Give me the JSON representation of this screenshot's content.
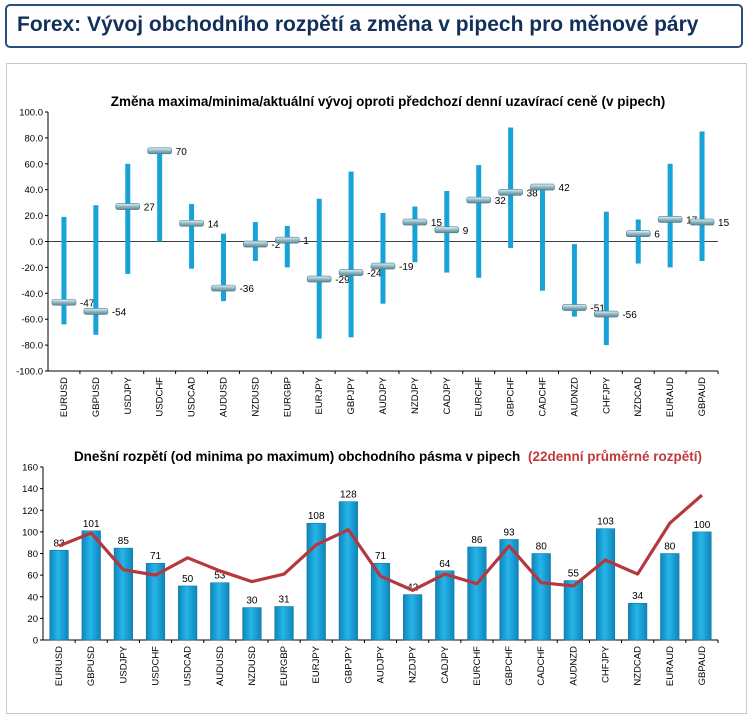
{
  "header": {
    "title": "Forex: Vývoj obchodního rozpětí a změna v pipech pro měnové páry"
  },
  "colors": {
    "bar": "#17a2d8",
    "bar_dark": "#0b7fb0",
    "avg_line": "#b5383f",
    "marker": "#8fb8c4",
    "title_border": "#2a4f7a"
  },
  "chart_data": [
    {
      "type": "range",
      "title": "Změna maxima/minima/aktuální vývoj oproti předchozí denní uzavírací ceně (v pipech)",
      "ylim": [
        -100,
        100
      ],
      "yticks": [
        "100.0",
        "80.0",
        "60.0",
        "40.0",
        "20.0",
        "0.0",
        "-20.0",
        "-40.0",
        "-60.0",
        "-80.0",
        "-100.0"
      ],
      "categories": [
        "EURUSD",
        "GBPUSD",
        "USDJPY",
        "USDCHF",
        "USDCAD",
        "AUDUSD",
        "NZDUSD",
        "EURGBP",
        "EURJPY",
        "GBPJPY",
        "AUDJPY",
        "NZDJPY",
        "CADJPY",
        "EURCHF",
        "GBPCHF",
        "CADCHF",
        "AUDNZD",
        "CHFJPY",
        "NZDCAD",
        "EURAUD",
        "GBPAUD"
      ],
      "high": [
        19,
        28,
        60,
        70,
        29,
        6,
        15,
        12,
        33,
        54,
        22,
        27,
        39,
        59,
        88,
        43,
        -2,
        23,
        17,
        60,
        85
      ],
      "low": [
        -64,
        -72,
        -25,
        0,
        -21,
        -46,
        -15,
        -20,
        -75,
        -74,
        -48,
        -16,
        -24,
        -28,
        -5,
        -38,
        -58,
        -80,
        -17,
        -20,
        -15
      ],
      "current": [
        -47,
        -54,
        27,
        70,
        14,
        -36,
        -2,
        1,
        -29,
        -24,
        -19,
        15,
        9,
        32,
        38,
        42,
        -51,
        -56,
        6,
        17,
        15
      ],
      "labels": [
        "-47",
        "-54",
        "27",
        "70",
        "14",
        "-36",
        "-2",
        "1",
        "-29",
        "-24",
        "-19",
        "15",
        "9",
        "32",
        "38",
        "42",
        "-51",
        "-56",
        "6",
        "17",
        "15"
      ]
    },
    {
      "type": "bar",
      "title": "Dnešní rozpětí (od minima po maximum) obchodního pásma v pipech",
      "title_suffix": "(22denní průměrné rozpětí)",
      "ylim": [
        0,
        160
      ],
      "yticks": [
        "160",
        "140",
        "120",
        "100",
        "80",
        "60",
        "40",
        "20",
        "0"
      ],
      "categories": [
        "EURUSD",
        "GBPUSD",
        "USDJPY",
        "USDCHF",
        "USDCAD",
        "AUDUSD",
        "NZDUSD",
        "EURGBP",
        "EURJPY",
        "GBPJPY",
        "AUDJPY",
        "NZDJPY",
        "CADJPY",
        "EURCHF",
        "GBPCHF",
        "CADCHF",
        "AUDNZD",
        "CHFJPY",
        "NZDCAD",
        "EURAUD",
        "GBPAUD"
      ],
      "series": [
        {
          "values": [
            83,
            101,
            85,
            71,
            50,
            53,
            30,
            31,
            108,
            128,
            71,
            42,
            64,
            86,
            93,
            80,
            55,
            103,
            34,
            80,
            100
          ]
        },
        {
          "values": [
            87,
            99,
            65,
            60,
            76,
            64,
            54,
            61,
            88,
            102,
            59,
            46,
            61,
            52,
            87,
            53,
            50,
            74,
            61,
            108,
            134
          ]
        }
      ],
      "labels": [
        "83",
        "101",
        "85",
        "71",
        "50",
        "53",
        "30",
        "31",
        "108",
        "128",
        "71",
        "42",
        "64",
        "86",
        "93",
        "80",
        "55",
        "103",
        "34",
        "80",
        "100"
      ]
    }
  ]
}
